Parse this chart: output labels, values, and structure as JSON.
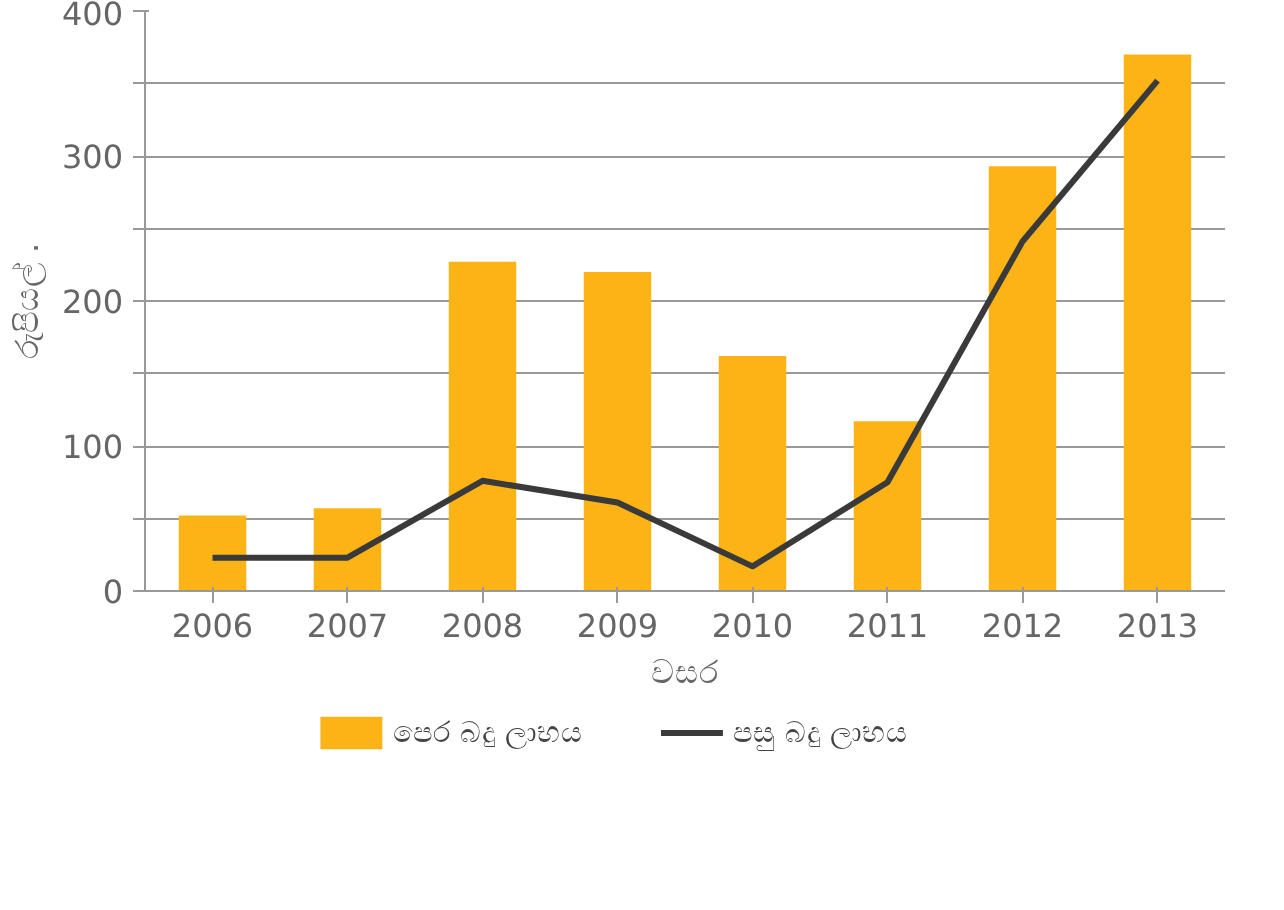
{
  "chart_data": {
    "type": "bar",
    "xlabel": "වසර",
    "ylabel": "රුපියල් .",
    "categories": [
      "2006",
      "2007",
      "2008",
      "2009",
      "2010",
      "2011",
      "2012",
      "2013"
    ],
    "series": [
      {
        "name": "පෙර බදු ලාභය",
        "color": "#fbb316",
        "values": [
          52,
          57,
          227,
          220,
          162,
          117,
          293,
          370
        ]
      },
      {
        "name": "පසු බදු ලාභය",
        "type": "line",
        "color": "#3a3a3a",
        "values": [
          23,
          23,
          76,
          61,
          17,
          75,
          241,
          352
        ]
      }
    ],
    "ylim": [
      0,
      400
    ],
    "yticks": [
      0,
      {
        "value": 50,
        "label": null
      },
      100,
      {
        "value": 150,
        "label": null
      },
      200,
      {
        "value": 250,
        "label": null
      },
      300,
      {
        "value": 350,
        "label": null
      },
      400
    ],
    "grid": "y",
    "legend": "bottom",
    "line_style": "solid"
  }
}
